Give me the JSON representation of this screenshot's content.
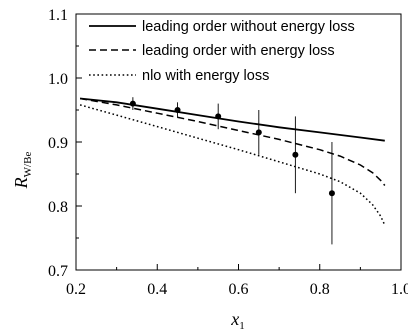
{
  "chart_data": {
    "type": "line",
    "xlabel": "x",
    "xlabel_sub": "1",
    "ylabel": "R",
    "ylabel_sub": "W/Be",
    "xlim": [
      0.2,
      1.0
    ],
    "ylim": [
      0.7,
      1.1
    ],
    "xticks": [
      "0.2",
      "0.4",
      "0.6",
      "0.8",
      "1.0"
    ],
    "yticks": [
      "0.7",
      "0.8",
      "0.9",
      "1.0",
      "1.1"
    ],
    "legend_position": "top-right",
    "series": [
      {
        "name": "leading order without energy loss",
        "style": "solid",
        "x": [
          0.21,
          0.3,
          0.4,
          0.5,
          0.6,
          0.7,
          0.8,
          0.9,
          0.96
        ],
        "y": [
          0.968,
          0.962,
          0.952,
          0.942,
          0.932,
          0.923,
          0.915,
          0.907,
          0.902
        ]
      },
      {
        "name": "leading order with energy loss",
        "style": "dashed",
        "x": [
          0.21,
          0.3,
          0.4,
          0.5,
          0.6,
          0.7,
          0.8,
          0.85,
          0.9,
          0.93,
          0.95,
          0.96
        ],
        "y": [
          0.968,
          0.958,
          0.945,
          0.932,
          0.918,
          0.904,
          0.888,
          0.878,
          0.864,
          0.852,
          0.84,
          0.832
        ]
      },
      {
        "name": "nlo with energy loss",
        "style": "dotted",
        "x": [
          0.21,
          0.3,
          0.4,
          0.5,
          0.6,
          0.7,
          0.8,
          0.85,
          0.9,
          0.93,
          0.95,
          0.96
        ],
        "y": [
          0.958,
          0.942,
          0.924,
          0.906,
          0.888,
          0.869,
          0.85,
          0.838,
          0.82,
          0.802,
          0.784,
          0.77
        ]
      }
    ],
    "points": {
      "x": [
        0.34,
        0.45,
        0.55,
        0.65,
        0.74,
        0.83
      ],
      "y": [
        0.96,
        0.95,
        0.94,
        0.915,
        0.88,
        0.82
      ],
      "err": [
        0.01,
        0.012,
        0.02,
        0.035,
        0.06,
        0.08
      ]
    }
  }
}
